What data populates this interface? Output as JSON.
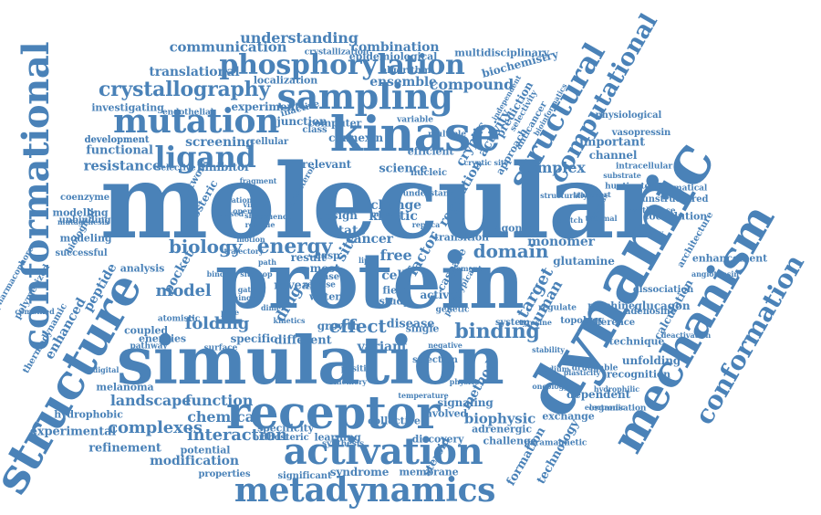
{
  "colors": {
    "word": "#4a82b8",
    "background": "#ffffff"
  },
  "words": [
    "molecular",
    "protein",
    "simulation",
    "receptor",
    "dynamic",
    "kinase",
    "structure",
    "conformational",
    "mechanism",
    "metadynamics",
    "activation",
    "sampling",
    "mutation",
    "conformation",
    "structural",
    "computational",
    "phosphorylation",
    "ligand",
    "crystallography",
    "binding",
    "energy",
    "domain",
    "biology",
    "model",
    "effect",
    "complexes",
    "interaction",
    "landscape",
    "function",
    "chemical",
    "folding",
    "target",
    "human",
    "resistance",
    "enhanced",
    "peptide",
    "understanding",
    "communication",
    "combination",
    "translational",
    "compound",
    "biochemistry",
    "complex",
    "science",
    "method",
    "biophysic",
    "formation",
    "technology",
    "membrane",
    "syndrome",
    "properties",
    "modification",
    "refinement",
    "experimental",
    "hydrophobic",
    "potential",
    "glutamine",
    "monomer",
    "channel",
    "important",
    "physiological",
    "vasopressin",
    "calculation",
    "enhancement",
    "machine",
    "recognition",
    "dependent",
    "signaling",
    "discovery",
    "challenge",
    "cancer",
    "variant",
    "growth",
    "disease",
    "active",
    "specific",
    "different",
    "screening",
    "functional",
    "allosteric",
    "drug",
    "site",
    "modelling",
    "modeling",
    "unbinding",
    "coenzyme",
    "polymerized",
    "thermodynamic",
    "pharmacophore",
    "successful",
    "biological",
    "epidemiological",
    "multidisciplinary",
    "crystallization",
    "localization",
    "ensemble",
    "algorithm",
    "experiment",
    "investigating",
    "endothelial",
    "junction",
    "connexin",
    "computer",
    "class",
    "efficient",
    "cryptic",
    "activity",
    "prediction",
    "approach",
    "anticancer",
    "selectivity",
    "intracellular",
    "mathematical",
    "unstructured",
    "coevolution",
    "dissociation",
    "glucagon",
    "architecture",
    "adenosine",
    "unfolding",
    "technique",
    "difference",
    "organisation",
    "exchange",
    "adrenergic",
    "paramagnetic",
    "collective",
    "learning",
    "synthesis",
    "significant",
    "orthosteric",
    "specificity",
    "melanoma",
    "steroid",
    "involved",
    "cell",
    "free",
    "factor",
    "state",
    "transition",
    "kinetic",
    "change",
    "design",
    "regulation",
    "agonist",
    "nucleic",
    "relevant",
    "inhibitor",
    "network",
    "development",
    "cellular",
    "understand",
    "cholesterol",
    "selective",
    "development",
    "energies",
    "coupled",
    "analysis",
    "pocket",
    "water",
    "reveal",
    "result",
    "most",
    "case",
    "release",
    "study",
    "field",
    "single",
    "system",
    "regulate",
    "topology",
    "secondary",
    "synthetase",
    "huntington",
    "substrate",
    "electronic",
    "deactivation",
    "angiotensin",
    "hydrophilic",
    "druggable",
    "temperature",
    "inactive",
    "positive",
    "negative",
    "selection",
    "genetic",
    "element",
    "casp",
    "caspase",
    "prototypical",
    "atomistic",
    "rational",
    "multiple",
    "variable",
    "mutant",
    "mutagenesis",
    "tyrosine",
    "closed",
    "open",
    "shape",
    "sequence",
    "combined",
    "binding site",
    "process",
    "independent",
    "structurally",
    "bioinformatics",
    "cryptic site",
    "digital",
    "dimer",
    "fragment",
    "gating",
    "hinge",
    "kinetics",
    "lipid",
    "loop",
    "memory",
    "motion",
    "oncology",
    "path",
    "pathway",
    "physics",
    "plasticity",
    "pore",
    "replica",
    "residue",
    "sodium",
    "stability",
    "surface",
    "switch",
    "thermal",
    "transport",
    "trajectory",
    "virtual"
  ]
}
